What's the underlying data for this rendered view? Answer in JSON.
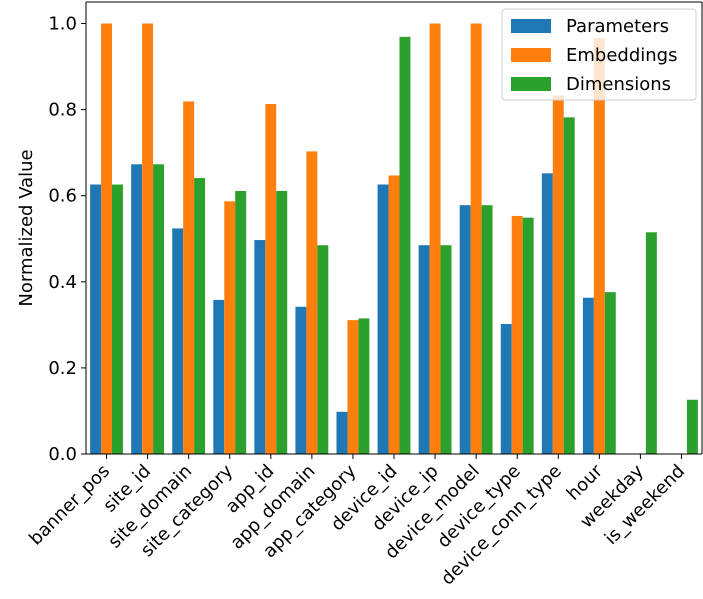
{
  "chart_data": {
    "type": "bar",
    "ylabel": "Normalized Value",
    "ylim": [
      0,
      1.05
    ],
    "yticks": [
      "0.0",
      "0.2",
      "0.4",
      "0.6",
      "0.8",
      "1.0"
    ],
    "categories": [
      "banner_pos",
      "site_id",
      "site_domain",
      "site_category",
      "app_id",
      "app_domain",
      "app_category",
      "device_id",
      "device_ip",
      "device_model",
      "device_type",
      "device_conn_type",
      "hour",
      "weekday",
      "is_weekend"
    ],
    "series": [
      {
        "name": "Parameters",
        "color": "#1f77b4",
        "values": [
          0.626,
          0.673,
          0.524,
          0.358,
          0.497,
          0.342,
          0.098,
          0.626,
          0.485,
          0.578,
          0.302,
          0.652,
          0.363,
          0,
          0
        ]
      },
      {
        "name": "Embeddings",
        "color": "#ff7f0e",
        "values": [
          1.0,
          1.0,
          0.819,
          0.587,
          0.813,
          0.703,
          0.311,
          0.647,
          1.0,
          1.0,
          0.553,
          0.833,
          0.966,
          0,
          0
        ]
      },
      {
        "name": "Dimensions",
        "color": "#2ca02c",
        "values": [
          0.626,
          0.673,
          0.641,
          0.611,
          0.611,
          0.485,
          0.315,
          0.969,
          0.485,
          0.578,
          0.549,
          0.782,
          0.376,
          0.515,
          0.126
        ]
      }
    ],
    "legend": "top-right",
    "grid": false
  }
}
